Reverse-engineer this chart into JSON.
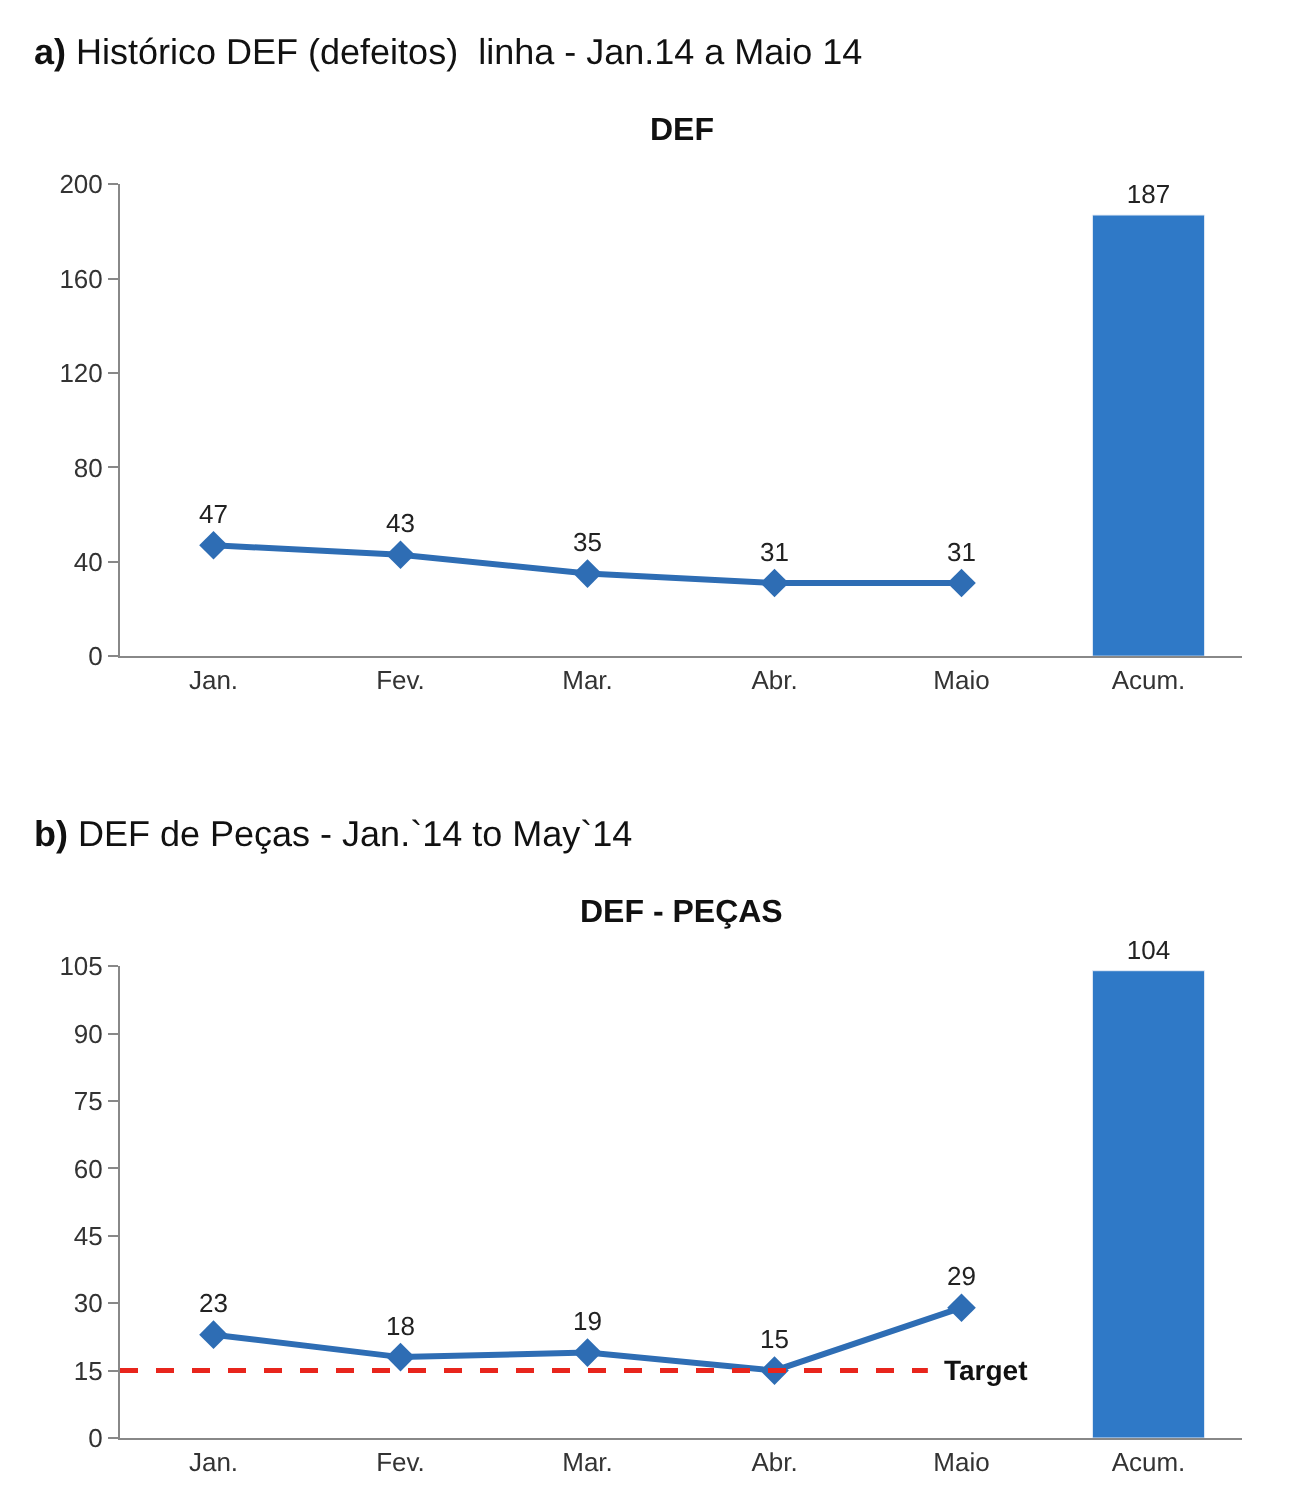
{
  "chart_data": [
    {
      "type": "line",
      "title": "a) Histórico DEF (defeitos)  linha - Jan.14 a Maio 14",
      "subtitle": "DEF",
      "categories": [
        "Jan.",
        "Fev.",
        "Mar.",
        "Abr.",
        "Maio",
        "Acum."
      ],
      "series": [
        {
          "color": "#2e6db4",
          "values": [
            47,
            43,
            35,
            31,
            31,
            null
          ]
        },
        {
          "type": "bar",
          "color": "#2f79c7",
          "values": [
            null,
            null,
            null,
            null,
            null,
            187
          ]
        }
      ],
      "ylim": [
        0,
        200
      ],
      "yticks": [
        0,
        40,
        80,
        120,
        160,
        200
      ],
      "data_labels": true,
      "marker": "diamond",
      "line_style": "solid"
    },
    {
      "type": "line",
      "title": "b) DEF de Peças - Jan.`14 to May`14",
      "subtitle": "DEF - PEÇAS",
      "categories": [
        "Jan.",
        "Fev.",
        "Mar.",
        "Abr.",
        "Maio",
        "Acum."
      ],
      "series": [
        {
          "color": "#2e6db4",
          "values": [
            23,
            18,
            19,
            15,
            29,
            null
          ]
        },
        {
          "type": "bar",
          "color": "#2f79c7",
          "values": [
            null,
            null,
            null,
            null,
            null,
            104
          ]
        }
      ],
      "ylim": [
        0,
        105
      ],
      "yticks": [
        0,
        15,
        30,
        45,
        60,
        75,
        90,
        105
      ],
      "data_labels": true,
      "marker": "diamond",
      "line_style": "solid",
      "ref_lines": [
        {
          "axis": "y",
          "value": 15,
          "label": "Target",
          "color": "#e8251c",
          "line_style": "dashed"
        }
      ]
    }
  ]
}
